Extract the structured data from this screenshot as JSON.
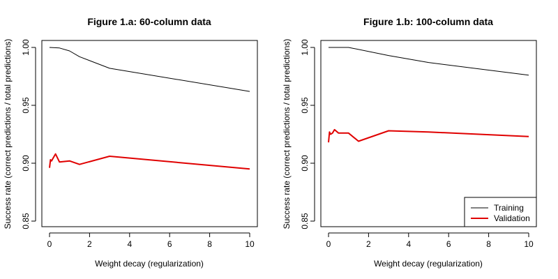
{
  "chart_data": [
    {
      "type": "line",
      "title": "Figure 1.a: 60-column data",
      "xlabel": "Weight decay (regularization)",
      "ylabel": "Success rate (correct predictions / total predictions)",
      "xlim": [
        0,
        10
      ],
      "ylim": [
        0.85,
        1.0
      ],
      "x_ticks": [
        "0",
        "2",
        "4",
        "6",
        "8",
        "10"
      ],
      "y_ticks": [
        "0.85",
        "0.90",
        "0.95",
        "1.00"
      ],
      "grid": false,
      "legend": null,
      "series": [
        {
          "name": "Training",
          "color": "#000000",
          "x": [
            0,
            0.5,
            1,
            1.5,
            3,
            10
          ],
          "y": [
            1.0,
            0.9995,
            0.997,
            0.992,
            0.982,
            0.962
          ]
        },
        {
          "name": "Validation",
          "color": "#e00000",
          "x": [
            0,
            0.05,
            0.1,
            0.2,
            0.3,
            0.5,
            1,
            1.5,
            3,
            10
          ],
          "y": [
            0.896,
            0.903,
            0.902,
            0.905,
            0.908,
            0.901,
            0.902,
            0.899,
            0.906,
            0.895
          ]
        }
      ]
    },
    {
      "type": "line",
      "title": "Figure 1.b: 100-column data",
      "xlabel": "Weight decay (regularization)",
      "ylabel": "Success rate (correct predictions / total predictions)",
      "xlim": [
        0,
        10
      ],
      "ylim": [
        0.85,
        1.0
      ],
      "x_ticks": [
        "0",
        "2",
        "4",
        "6",
        "8",
        "10"
      ],
      "y_ticks": [
        "0.85",
        "0.90",
        "0.95",
        "1.00"
      ],
      "grid": false,
      "legend": {
        "position": "bottom-right",
        "entries": [
          "Training",
          "Validation"
        ]
      },
      "series": [
        {
          "name": "Training",
          "color": "#000000",
          "x": [
            0,
            0.5,
            1,
            3,
            5,
            10
          ],
          "y": [
            1.0,
            1.0,
            1.0,
            0.993,
            0.987,
            0.976
          ]
        },
        {
          "name": "Validation",
          "color": "#e00000",
          "x": [
            0,
            0.05,
            0.1,
            0.2,
            0.3,
            0.5,
            1,
            1.5,
            3,
            5,
            10
          ],
          "y": [
            0.918,
            0.927,
            0.925,
            0.926,
            0.929,
            0.926,
            0.926,
            0.919,
            0.928,
            0.927,
            0.923
          ]
        }
      ]
    }
  ]
}
